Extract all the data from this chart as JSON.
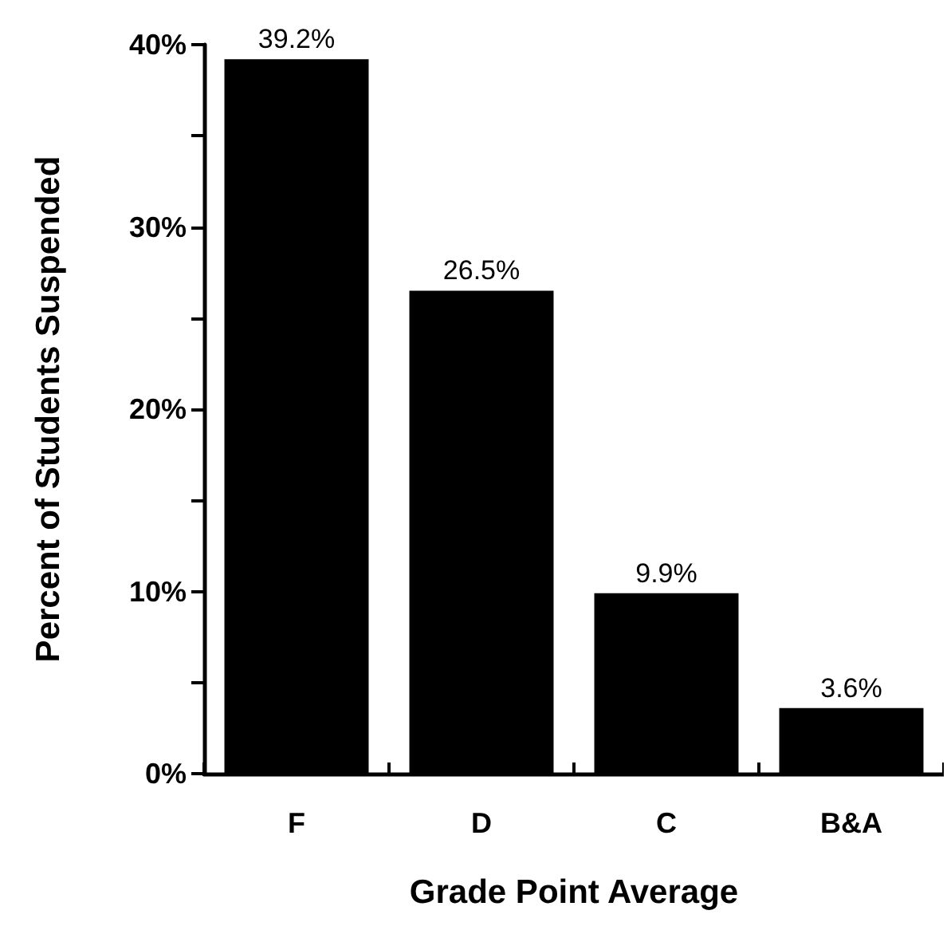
{
  "chart_data": {
    "type": "bar",
    "xlabel": "Grade Point Average",
    "ylabel": "Percent of Students Suspended",
    "categories": [
      "F",
      "D",
      "C",
      "B&A"
    ],
    "values": [
      39.2,
      26.5,
      9.9,
      3.6
    ],
    "value_labels": [
      "39.2%",
      "26.5%",
      "9.9%",
      "3.6%"
    ],
    "color": "#000000",
    "ylim": [
      0,
      40
    ],
    "yticks": [
      {
        "value": 0,
        "label": "0%"
      },
      {
        "value": 5,
        "label": null
      },
      {
        "value": 10,
        "label": "10%"
      },
      {
        "value": 15,
        "label": null
      },
      {
        "value": 20,
        "label": "20%"
      },
      {
        "value": 25,
        "label": null
      },
      {
        "value": 30,
        "label": "30%"
      },
      {
        "value": 35,
        "label": null
      },
      {
        "value": 40,
        "label": "40%"
      }
    ],
    "grid": false
  }
}
